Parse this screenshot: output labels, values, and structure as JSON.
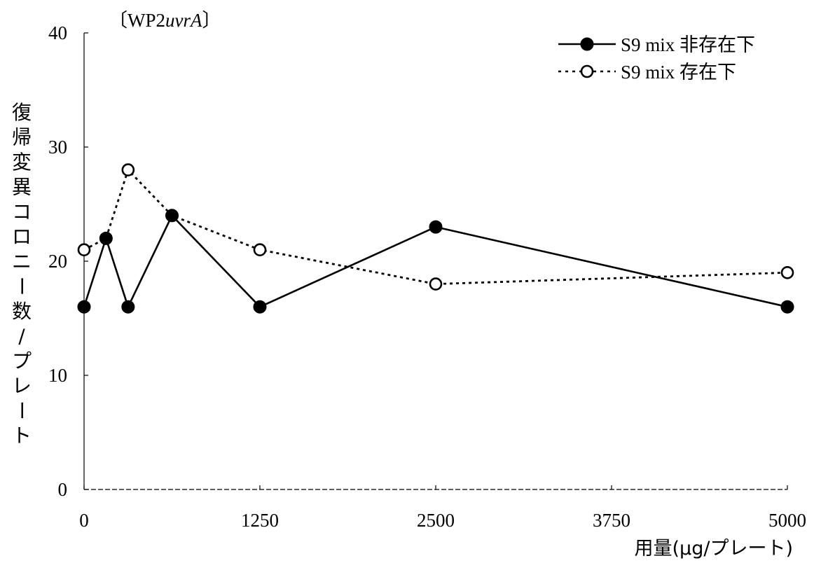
{
  "chart_data": {
    "type": "line",
    "title": "〔WP2uvrA〕",
    "title_prefix": "〔WP2",
    "title_italic": "uvrA",
    "title_suffix": "〕",
    "xlabel": "用量(μg/プレート)",
    "ylabel": "復帰変異コロニー数/プレート",
    "xlim": [
      0,
      5000
    ],
    "ylim": [
      0,
      40
    ],
    "x_ticks": [
      0,
      1250,
      2500,
      3750,
      5000
    ],
    "x_tick_labels": [
      "0",
      "1250",
      "2500",
      "3750",
      "5000"
    ],
    "y_ticks": [
      0,
      10,
      20,
      30,
      40
    ],
    "y_tick_labels": [
      "0",
      "10",
      "20",
      "30",
      "40"
    ],
    "grid": false,
    "legend_position": "top-right",
    "series": [
      {
        "name": "S9 mix 非存在下",
        "line_style": "solid",
        "marker": "filled-circle",
        "color": "#000000",
        "x": [
          0,
          156,
          313,
          625,
          1250,
          2500,
          5000
        ],
        "y": [
          16,
          22,
          16,
          24,
          16,
          23,
          16
        ]
      },
      {
        "name": "S9 mix 存在下",
        "line_style": "dotted",
        "marker": "open-circle",
        "color": "#000000",
        "x": [
          0,
          156,
          313,
          625,
          1250,
          2500,
          5000
        ],
        "y": [
          21,
          22,
          28,
          24,
          21,
          18,
          19
        ]
      }
    ]
  }
}
